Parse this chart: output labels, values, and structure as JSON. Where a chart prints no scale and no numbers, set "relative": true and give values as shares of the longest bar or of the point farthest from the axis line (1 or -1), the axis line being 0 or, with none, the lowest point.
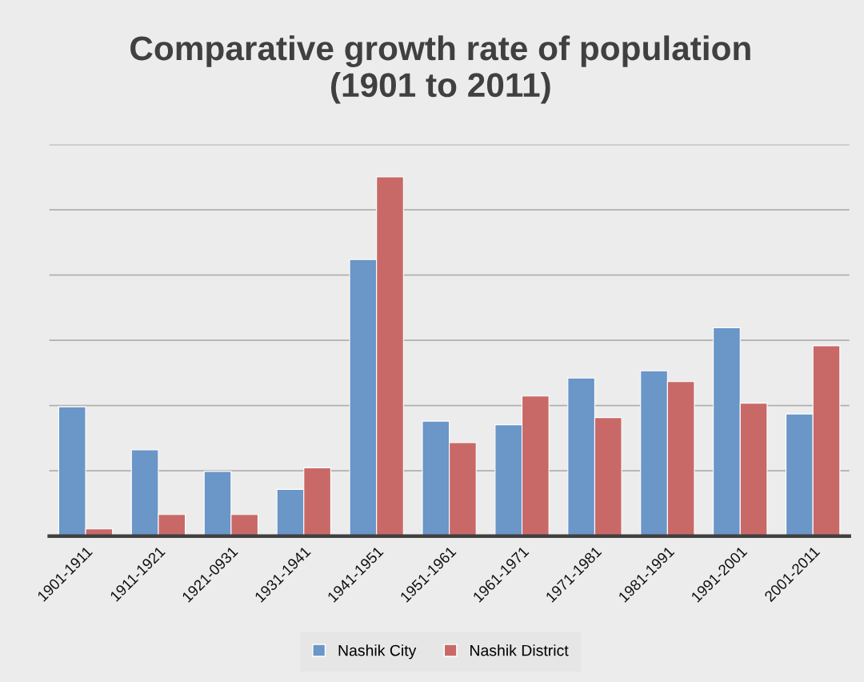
{
  "chart_data": {
    "type": "bar",
    "title": "Comparative growth rate of population\n(1901 to 2011)",
    "categories": [
      "1901-1911",
      "1911-1921",
      "1921-0931",
      "1931-1941",
      "1941-1951",
      "1951-1961",
      "1961-1971",
      "1971-1981",
      "1981-1991",
      "1991-2001",
      "2001-2011"
    ],
    "series": [
      {
        "name": "Nashik City",
        "color": "#6a96c8",
        "values": [
          0.36,
          0.24,
          0.18,
          0.13,
          0.77,
          0.32,
          0.31,
          0.44,
          0.46,
          0.58,
          0.34
        ]
      },
      {
        "name": "Nashik District",
        "color": "#c86968",
        "values": [
          0.02,
          0.06,
          0.06,
          0.19,
          1,
          0.26,
          0.39,
          0.33,
          0.43,
          0.37,
          0.53
        ]
      }
    ],
    "relative": true,
    "grid": "y",
    "legend": "bottom"
  }
}
